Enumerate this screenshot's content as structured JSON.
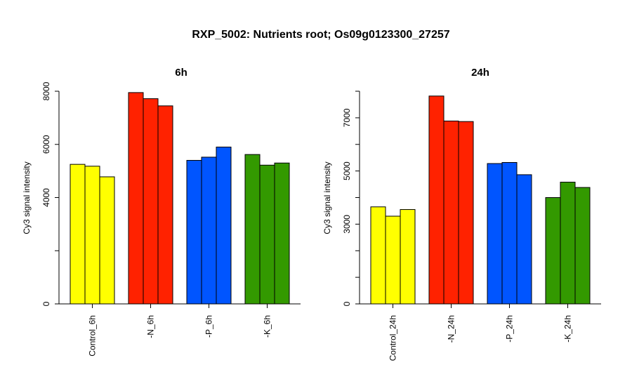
{
  "title": "RXP_5002: Nutrients root; Os09g0123300_27257",
  "chart_data": [
    {
      "type": "bar",
      "title": "6h",
      "ylabel": "Cy3 signal intensity",
      "ylim": [
        0,
        8000
      ],
      "yticks": [
        0,
        4000,
        6000,
        8000
      ],
      "groups": [
        {
          "label": "Control_6h",
          "color": "#ffff00",
          "values": [
            5250,
            5180,
            4780
          ]
        },
        {
          "label": "-N_6h",
          "color": "#ff2200",
          "values": [
            7950,
            7720,
            7450
          ]
        },
        {
          "label": "-P_6h",
          "color": "#0055ff",
          "values": [
            5400,
            5520,
            5900
          ]
        },
        {
          "label": "-K_6h",
          "color": "#339900",
          "values": [
            5620,
            5220,
            5300
          ]
        }
      ]
    },
    {
      "type": "bar",
      "title": "24h",
      "ylabel": "Cy3 signal intensity",
      "ylim": [
        0,
        8000
      ],
      "yticks": [
        0,
        3000,
        5000,
        7000
      ],
      "groups": [
        {
          "label": "Control_24h",
          "color": "#ffff00",
          "values": [
            3650,
            3300,
            3550
          ]
        },
        {
          "label": "-N_24h",
          "color": "#ff2200",
          "values": [
            7820,
            6880,
            6860
          ]
        },
        {
          "label": "-P_24h",
          "color": "#0055ff",
          "values": [
            5280,
            5320,
            4860
          ]
        },
        {
          "label": "-K_24h",
          "color": "#339900",
          "values": [
            4000,
            4580,
            4380
          ]
        }
      ]
    }
  ]
}
